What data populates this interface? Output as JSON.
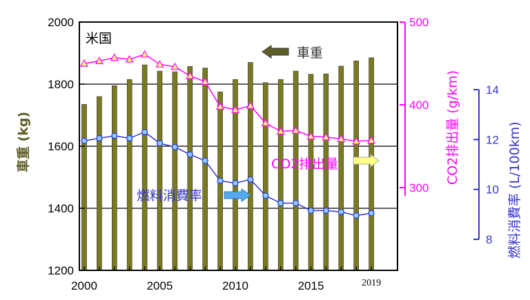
{
  "chart_data": {
    "type": "bar+line",
    "title": "米国",
    "x": [
      2000,
      2001,
      2002,
      2003,
      2004,
      2005,
      2006,
      2007,
      2008,
      2009,
      2010,
      2011,
      2012,
      2013,
      2014,
      2015,
      2016,
      2017,
      2018,
      2019
    ],
    "x_tick_labels": [
      "2000",
      "2005",
      "2010",
      "2015",
      "2019"
    ],
    "axes": {
      "left": {
        "label": "車重 (kg)",
        "ylim": [
          1200,
          2000
        ],
        "ticks": [
          "1200",
          "1400",
          "1600",
          "1800",
          "2000"
        ],
        "color": "#000000"
      },
      "right1": {
        "label": "CO2排出量 (g/km)",
        "ylim": [
          200,
          500
        ],
        "ticks": [
          "300",
          "400",
          "500"
        ],
        "color": "#ff00ff"
      },
      "right2": {
        "label": "燃料消費率 (L/100km)",
        "ylim": [
          8,
          14
        ],
        "ticks": [
          "8",
          "10",
          "12",
          "14"
        ],
        "color": "#3333cc"
      }
    },
    "series": [
      {
        "name": "車重",
        "axis": "left",
        "type": "bar",
        "color": "#7a7a20",
        "values": [
          1735,
          1760,
          1795,
          1815,
          1862,
          1842,
          1840,
          1857,
          1852,
          1775,
          1815,
          1870,
          1805,
          1815,
          1842,
          1832,
          1833,
          1858,
          1875,
          1885
        ]
      },
      {
        "name": "CO2排出量",
        "axis": "right1",
        "type": "line",
        "color": "#ff00ff",
        "values": [
          450,
          453,
          457,
          455,
          461,
          449,
          446,
          435,
          428,
          398,
          394,
          399,
          378,
          368,
          369,
          362,
          361,
          359,
          356,
          357
        ]
      },
      {
        "name": "燃料消費率",
        "axis": "right2",
        "type": "line",
        "color": "#3333cc",
        "values": [
          11.95,
          12.05,
          12.15,
          12.05,
          12.3,
          11.85,
          11.7,
          11.4,
          11.15,
          10.35,
          10.25,
          10.4,
          9.75,
          9.45,
          9.45,
          9.15,
          9.15,
          9.1,
          8.95,
          9.05
        ]
      }
    ],
    "annotations": {
      "weight": "車重",
      "co2": "CO2排出量",
      "fuel": "燃料消費率"
    },
    "grid": true
  },
  "colors": {
    "bar_fill": "#7a7a20",
    "co2": "#ff00ff",
    "fuel": "#3333cc",
    "arrow_weight": "#5e5e28",
    "arrow_co2": "#ffff80",
    "arrow_fuel": "#55aaee"
  }
}
